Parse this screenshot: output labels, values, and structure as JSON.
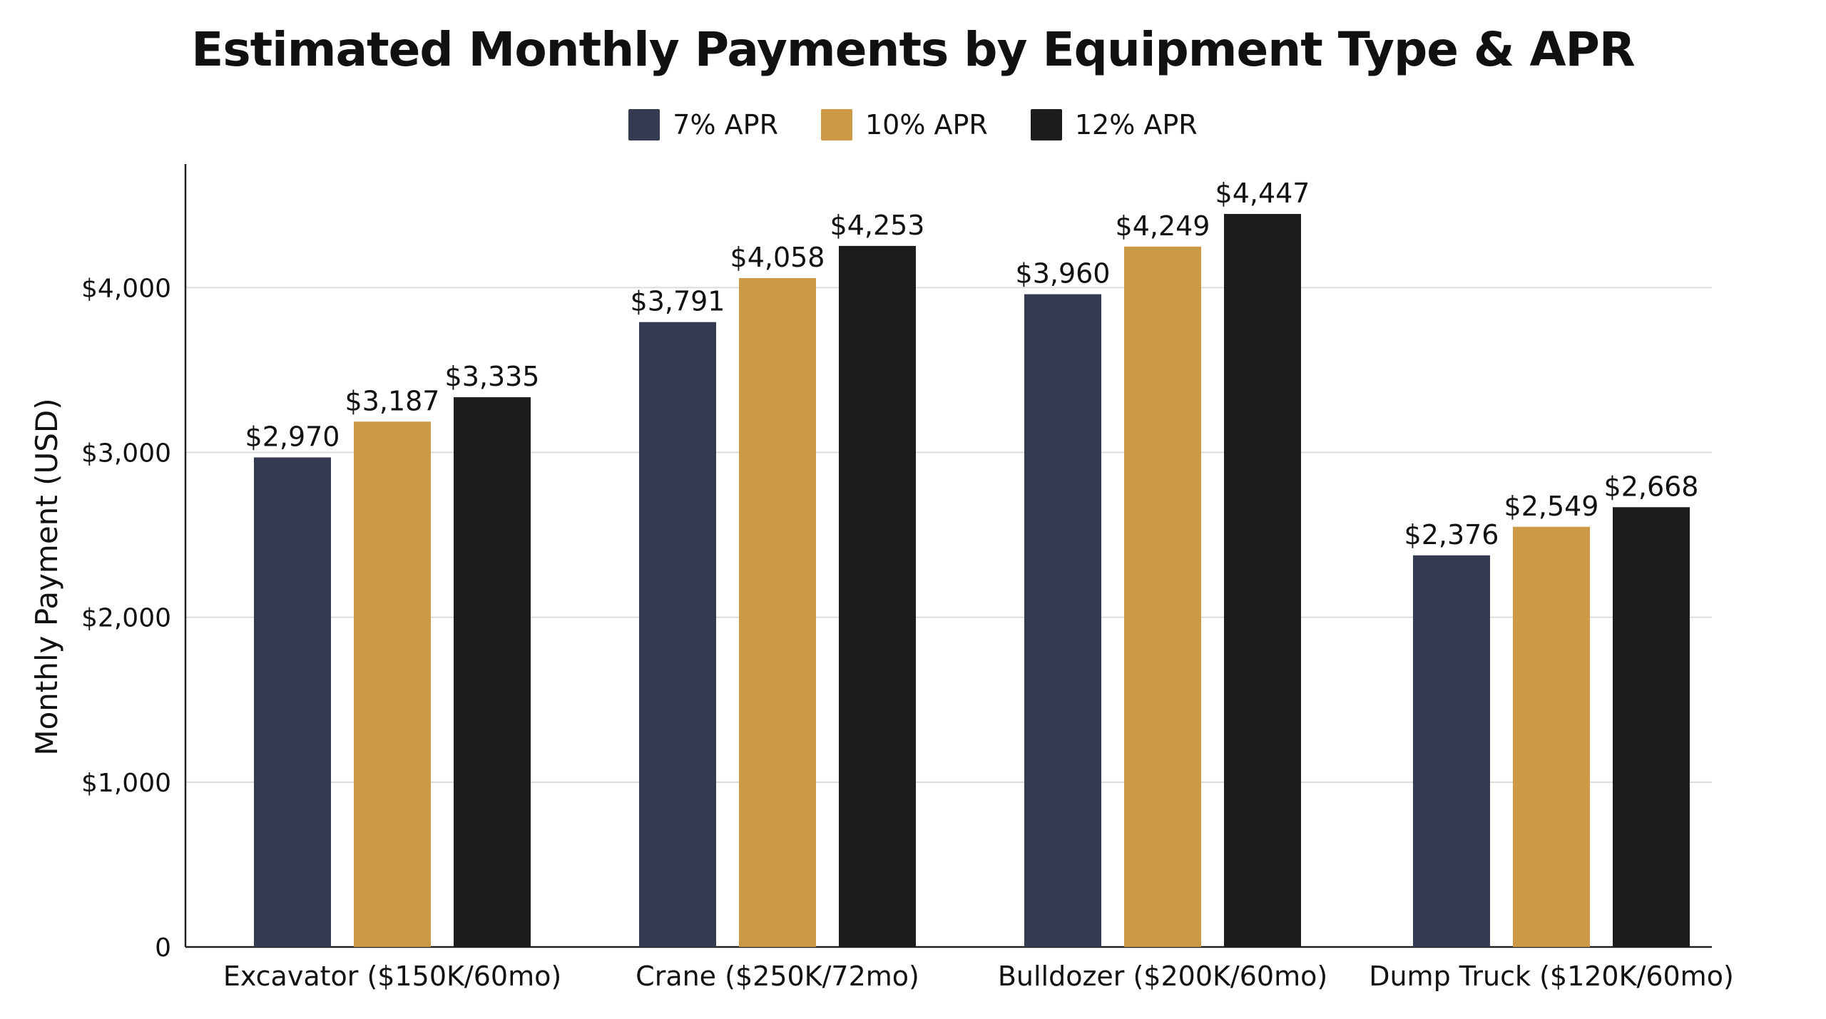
{
  "chart_data": {
    "type": "bar",
    "title": "Estimated Monthly Payments by Equipment Type & APR",
    "xlabel": "",
    "ylabel": "Monthly Payment (USD)",
    "categories": [
      "Excavator ($150K/60mo)",
      "Crane ($250K/72mo)",
      "Bulldozer ($200K/60mo)",
      "Dump Truck ($120K/60mo)"
    ],
    "series": [
      {
        "name": "7% APR",
        "color": "#343a4f",
        "values": [
          2970,
          3791,
          3960,
          2376
        ],
        "labels": [
          "$2,970",
          "$3,791",
          "$3,960",
          "$2,376"
        ]
      },
      {
        "name": "10% APR",
        "color": "#cc9a45",
        "values": [
          3187,
          4058,
          4249,
          2549
        ],
        "labels": [
          "$3,187",
          "$4,058",
          "$4,249",
          "$2,549"
        ]
      },
      {
        "name": "12% APR",
        "color": "#1c1c1c",
        "values": [
          3335,
          4253,
          4447,
          2668
        ],
        "labels": [
          "$3,335",
          "$4,253",
          "$4,447",
          "$2,668"
        ]
      }
    ],
    "ylim": [
      0,
      4750
    ],
    "yticks": [
      0,
      1000,
      2000,
      3000,
      4000
    ],
    "ytick_labels": [
      "0",
      "$1,000",
      "$2,000",
      "$3,000",
      "$4,000"
    ],
    "grid": true,
    "legend_position": "top-center"
  }
}
